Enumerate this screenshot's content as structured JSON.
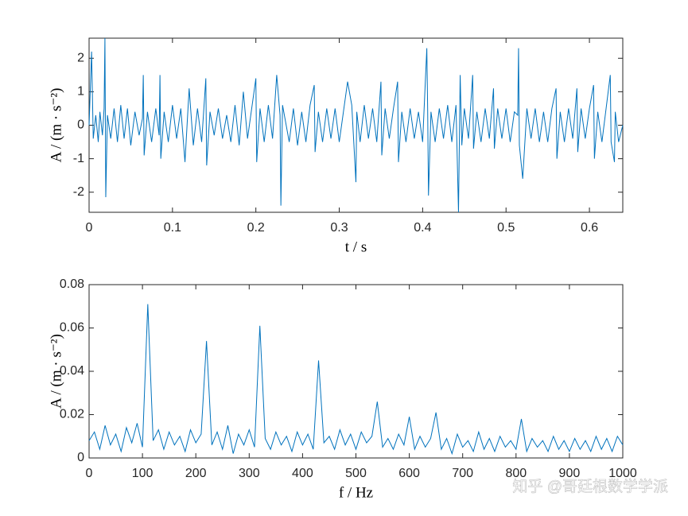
{
  "chart_data": [
    {
      "type": "line",
      "xlabel": "t / s",
      "ylabel": "A / (m · s⁻²)",
      "xlim": [
        0,
        0.64
      ],
      "ylim": [
        -2.6,
        2.6
      ],
      "xticks": [
        0,
        0.1,
        0.2,
        0.3,
        0.4,
        0.5,
        0.6
      ],
      "yticks": [
        -2,
        -1,
        0,
        1,
        2
      ],
      "x": [
        0,
        0.003,
        0.005,
        0.008,
        0.011,
        0.013,
        0.016,
        0.018,
        0.019,
        0.02,
        0.022,
        0.026,
        0.03,
        0.034,
        0.038,
        0.042,
        0.046,
        0.05,
        0.055,
        0.06,
        0.064,
        0.065,
        0.066,
        0.07,
        0.075,
        0.08,
        0.084,
        0.085,
        0.086,
        0.09,
        0.095,
        0.1,
        0.105,
        0.11,
        0.115,
        0.12,
        0.125,
        0.13,
        0.135,
        0.14,
        0.141,
        0.145,
        0.15,
        0.155,
        0.16,
        0.165,
        0.17,
        0.175,
        0.18,
        0.185,
        0.19,
        0.195,
        0.2,
        0.201,
        0.205,
        0.21,
        0.215,
        0.22,
        0.225,
        0.229,
        0.23,
        0.232,
        0.24,
        0.245,
        0.25,
        0.255,
        0.26,
        0.265,
        0.27,
        0.271,
        0.275,
        0.28,
        0.285,
        0.29,
        0.295,
        0.3,
        0.305,
        0.31,
        0.315,
        0.32,
        0.321,
        0.325,
        0.33,
        0.335,
        0.34,
        0.345,
        0.35,
        0.351,
        0.355,
        0.36,
        0.365,
        0.37,
        0.371,
        0.375,
        0.38,
        0.385,
        0.39,
        0.395,
        0.4,
        0.405,
        0.406,
        0.407,
        0.41,
        0.415,
        0.42,
        0.425,
        0.43,
        0.435,
        0.44,
        0.443,
        0.445,
        0.447,
        0.45,
        0.455,
        0.46,
        0.461,
        0.465,
        0.47,
        0.475,
        0.48,
        0.485,
        0.486,
        0.49,
        0.495,
        0.5,
        0.505,
        0.51,
        0.514,
        0.515,
        0.516,
        0.52,
        0.525,
        0.53,
        0.535,
        0.54,
        0.545,
        0.55,
        0.555,
        0.56,
        0.561,
        0.565,
        0.57,
        0.575,
        0.58,
        0.585,
        0.586,
        0.59,
        0.595,
        0.6,
        0.605,
        0.606,
        0.61,
        0.615,
        0.62,
        0.625,
        0.626,
        0.63,
        0.631,
        0.635,
        0.64
      ],
      "series": [
        {
          "color": "#0072bd",
          "values": [
            0,
            2.2,
            -0.4,
            0.3,
            -0.5,
            0.4,
            -0.3,
            0.5,
            2.6,
            -2.15,
            0.3,
            -0.4,
            0.5,
            -0.5,
            0.6,
            -0.4,
            0.5,
            -0.6,
            0.4,
            -0.3,
            0.2,
            1.5,
            -0.9,
            0.4,
            -0.5,
            0.5,
            -0.3,
            1.5,
            -1.0,
            0.4,
            -0.5,
            0.6,
            -0.4,
            0.5,
            -1.1,
            1.1,
            -0.6,
            0.5,
            -0.5,
            1.4,
            -1.2,
            0.4,
            -0.3,
            0.5,
            -0.4,
            0.3,
            -0.5,
            0.6,
            -0.6,
            1.0,
            -0.4,
            0.5,
            1.4,
            -1.1,
            0.5,
            -0.5,
            0.6,
            -0.4,
            1.5,
            0.3,
            -2.4,
            0.6,
            -0.5,
            0.5,
            -0.6,
            0.4,
            -0.5,
            0.6,
            1.2,
            -0.8,
            0.4,
            -0.5,
            0.5,
            -0.4,
            0.5,
            -0.5,
            0.4,
            1.3,
            0.6,
            -1.7,
            0.4,
            -0.5,
            0.6,
            -0.4,
            0.5,
            -0.5,
            1.3,
            -0.9,
            0.5,
            -0.4,
            0.5,
            1.3,
            -1.1,
            0.4,
            -0.5,
            0.5,
            -0.4,
            0.4,
            -0.5,
            2.3,
            0.5,
            -2.1,
            0.4,
            -0.5,
            0.5,
            -0.4,
            0.6,
            -0.5,
            0.6,
            -2.6,
            1.5,
            -0.6,
            0.5,
            -0.4,
            1.5,
            -0.7,
            0.4,
            -0.5,
            0.5,
            -0.4,
            1.1,
            -0.7,
            0.5,
            -0.4,
            0.5,
            -0.5,
            0.4,
            0.3,
            2.3,
            -0.6,
            -1.6,
            0.5,
            -0.4,
            0.5,
            -0.5,
            0.4,
            -0.5,
            0.5,
            1.1,
            -1.0,
            0.4,
            -0.5,
            0.5,
            -0.4,
            1.1,
            -0.8,
            0.5,
            -0.4,
            0.5,
            1.2,
            -1.0,
            0.4,
            -0.5,
            0.5,
            1.5,
            -0.5,
            -1.1,
            0.4,
            -0.5,
            0
          ]
        }
      ]
    },
    {
      "type": "line",
      "xlabel": "f / Hz",
      "ylabel": "A / (m · s⁻²)",
      "xlim": [
        0,
        1000
      ],
      "ylim": [
        0,
        0.08
      ],
      "xticks": [
        0,
        100,
        200,
        300,
        400,
        500,
        600,
        700,
        800,
        900,
        1000
      ],
      "yticks": [
        0,
        0.02,
        0.04,
        0.06,
        0.08
      ],
      "x": [
        0,
        10,
        20,
        30,
        40,
        50,
        60,
        70,
        80,
        90,
        100,
        110,
        120,
        130,
        140,
        150,
        160,
        170,
        180,
        190,
        200,
        210,
        220,
        230,
        240,
        250,
        260,
        270,
        280,
        290,
        300,
        310,
        320,
        330,
        340,
        350,
        360,
        370,
        380,
        390,
        400,
        410,
        420,
        430,
        440,
        450,
        460,
        470,
        480,
        490,
        500,
        510,
        520,
        530,
        540,
        550,
        560,
        570,
        580,
        590,
        600,
        610,
        620,
        630,
        640,
        650,
        660,
        670,
        680,
        690,
        700,
        710,
        720,
        730,
        740,
        750,
        760,
        770,
        780,
        790,
        800,
        810,
        820,
        830,
        840,
        850,
        860,
        870,
        880,
        890,
        900,
        910,
        920,
        930,
        940,
        950,
        960,
        970,
        980,
        990,
        1000
      ],
      "series": [
        {
          "color": "#0072bd",
          "values": [
            0.008,
            0.012,
            0.004,
            0.015,
            0.006,
            0.011,
            0.003,
            0.014,
            0.007,
            0.016,
            0.005,
            0.071,
            0.008,
            0.013,
            0.004,
            0.012,
            0.006,
            0.01,
            0.003,
            0.013,
            0.007,
            0.011,
            0.054,
            0.006,
            0.012,
            0.004,
            0.015,
            0.002,
            0.011,
            0.006,
            0.013,
            0.005,
            0.061,
            0.009,
            0.004,
            0.012,
            0.006,
            0.01,
            0.003,
            0.012,
            0.006,
            0.011,
            0.004,
            0.045,
            0.007,
            0.01,
            0.004,
            0.013,
            0.006,
            0.011,
            0.004,
            0.012,
            0.007,
            0.01,
            0.026,
            0.005,
            0.009,
            0.004,
            0.011,
            0.006,
            0.019,
            0.004,
            0.01,
            0.005,
            0.009,
            0.021,
            0.004,
            0.009,
            0.002,
            0.011,
            0.005,
            0.008,
            0.003,
            0.012,
            0.004,
            0.009,
            0.003,
            0.01,
            0.005,
            0.008,
            0.004,
            0.018,
            0.003,
            0.009,
            0.005,
            0.008,
            0.003,
            0.01,
            0.004,
            0.008,
            0.003,
            0.009,
            0.004,
            0.008,
            0.003,
            0.01,
            0.004,
            0.009,
            0.003,
            0.01,
            0.006
          ]
        }
      ]
    }
  ],
  "watermark": "知乎 @哥廷根数学学派"
}
